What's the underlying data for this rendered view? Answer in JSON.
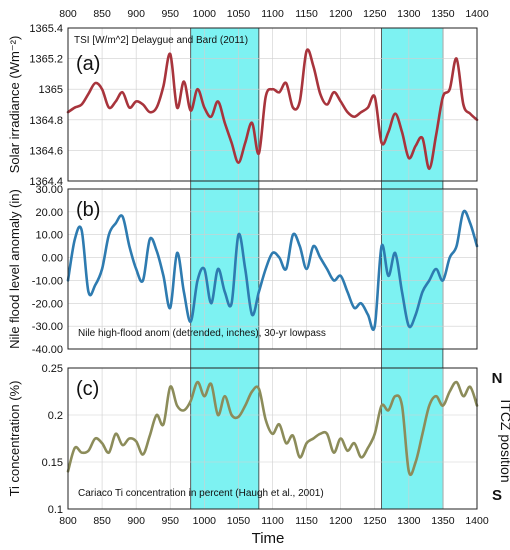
{
  "chart_data": {
    "type": "line",
    "x_axis": {
      "label": "Time",
      "range": [
        800,
        1400
      ],
      "ticks": [
        "800",
        "850",
        "900",
        "950",
        "1000",
        "1050",
        "1100",
        "1150",
        "1200",
        "1250",
        "1300",
        "1350",
        "1400"
      ]
    },
    "highlight_bands": [
      [
        980,
        1080
      ],
      [
        1260,
        1350
      ]
    ],
    "colors": {
      "band": "#66f0f0",
      "tsi": "#a8343c",
      "nile": "#2e7bb0",
      "ti": "#8c8c5a",
      "grid": "#cfcfcf"
    },
    "panels": [
      {
        "tag": "(a)",
        "ylabel": "Solar irradiance (Wm⁻²)",
        "ylim": [
          1364.4,
          1365.4
        ],
        "yticks": [
          "1365.4",
          "1365.2",
          "1365",
          "1364.8",
          "1364.6",
          "1364.4"
        ],
        "annotation": "TSI [W/m^2] Delaygue and Bard (2011)",
        "series": [
          {
            "x": [
              800,
              810,
              820,
              830,
              840,
              850,
              860,
              870,
              880,
              890,
              900,
              910,
              920,
              930,
              940,
              950,
              960,
              970,
              980,
              990,
              1000,
              1010,
              1020,
              1030,
              1040,
              1050,
              1060,
              1070,
              1080,
              1090,
              1100,
              1110,
              1120,
              1130,
              1140,
              1150,
              1160,
              1170,
              1180,
              1190,
              1200,
              1210,
              1220,
              1230,
              1240,
              1250,
              1260,
              1270,
              1280,
              1290,
              1300,
              1310,
              1320,
              1330,
              1340,
              1350,
              1360,
              1370,
              1380,
              1390,
              1400
            ],
            "y": [
              1364.85,
              1364.88,
              1364.9,
              1364.97,
              1365.04,
              1365.0,
              1364.88,
              1364.92,
              1364.98,
              1364.88,
              1364.92,
              1364.9,
              1364.85,
              1364.88,
              1365.02,
              1365.23,
              1364.88,
              1365.05,
              1364.86,
              1365.0,
              1364.88,
              1364.82,
              1364.92,
              1364.78,
              1364.65,
              1364.52,
              1364.65,
              1364.78,
              1364.58,
              1364.95,
              1365.0,
              1364.98,
              1365.04,
              1364.88,
              1364.92,
              1365.25,
              1365.15,
              1364.97,
              1364.9,
              1364.98,
              1364.92,
              1364.85,
              1364.82,
              1364.85,
              1364.88,
              1364.95,
              1364.65,
              1364.72,
              1364.84,
              1364.72,
              1364.55,
              1364.63,
              1364.68,
              1364.48,
              1364.7,
              1364.95,
              1365.0,
              1365.2,
              1364.9,
              1364.84,
              1364.8
            ]
          }
        ]
      },
      {
        "tag": "(b)",
        "ylabel": "Nile flood level anomaly (in)",
        "ylim": [
          -40,
          30
        ],
        "yticks": [
          "30.00",
          "20.00",
          "10.00",
          "0.00",
          "-10.00",
          "-20.00",
          "-30.00",
          "-40.00"
        ],
        "annotation": "Nile high-flood anom (detrended, inches), 30-yr lowpass",
        "series": [
          {
            "x": [
              800,
              810,
              820,
              830,
              840,
              850,
              860,
              870,
              880,
              890,
              900,
              910,
              920,
              930,
              940,
              950,
              960,
              970,
              980,
              990,
              1000,
              1010,
              1020,
              1030,
              1040,
              1050,
              1060,
              1070,
              1080,
              1090,
              1100,
              1110,
              1120,
              1130,
              1140,
              1150,
              1160,
              1170,
              1180,
              1190,
              1200,
              1210,
              1220,
              1230,
              1240,
              1250,
              1260,
              1270,
              1280,
              1290,
              1300,
              1310,
              1320,
              1330,
              1340,
              1350,
              1360,
              1370,
              1380,
              1390,
              1400
            ],
            "y": [
              -10,
              8,
              12,
              -15,
              -12,
              -5,
              10,
              15,
              18,
              5,
              -5,
              -10,
              8,
              3,
              -8,
              -22,
              2,
              -15,
              -28,
              -10,
              -5,
              -20,
              -5,
              -15,
              -20,
              10,
              -5,
              -25,
              -15,
              -5,
              2,
              0,
              -5,
              10,
              5,
              -5,
              5,
              0,
              -5,
              -10,
              -8,
              -15,
              -22,
              -20,
              -25,
              -30,
              5,
              -8,
              2,
              -15,
              -30,
              -25,
              -15,
              -10,
              -5,
              -10,
              0,
              5,
              20,
              15,
              5
            ]
          }
        ]
      },
      {
        "tag": "(c)",
        "ylabel": "Ti concentration (%)",
        "ylim": [
          0.1,
          0.25
        ],
        "yticks": [
          "0.25",
          "0.2",
          "0.15",
          "0.1"
        ],
        "annotation": "Cariaco Ti concentration in percent (Haugh et al., 2001)",
        "series": [
          {
            "x": [
              800,
              810,
              820,
              830,
              840,
              850,
              860,
              870,
              880,
              890,
              900,
              910,
              920,
              930,
              940,
              950,
              960,
              970,
              980,
              990,
              1000,
              1010,
              1020,
              1030,
              1040,
              1050,
              1060,
              1070,
              1080,
              1090,
              1100,
              1110,
              1120,
              1130,
              1140,
              1150,
              1160,
              1170,
              1180,
              1190,
              1200,
              1210,
              1220,
              1230,
              1240,
              1250,
              1260,
              1270,
              1280,
              1290,
              1300,
              1310,
              1320,
              1330,
              1340,
              1350,
              1360,
              1370,
              1380,
              1390,
              1400
            ],
            "y": [
              0.14,
              0.165,
              0.16,
              0.162,
              0.175,
              0.17,
              0.16,
              0.18,
              0.168,
              0.175,
              0.172,
              0.158,
              0.178,
              0.2,
              0.19,
              0.23,
              0.21,
              0.205,
              0.215,
              0.235,
              0.22,
              0.233,
              0.2,
              0.22,
              0.2,
              0.198,
              0.21,
              0.225,
              0.228,
              0.195,
              0.18,
              0.19,
              0.17,
              0.178,
              0.155,
              0.17,
              0.175,
              0.18,
              0.18,
              0.16,
              0.175,
              0.162,
              0.17,
              0.155,
              0.165,
              0.18,
              0.21,
              0.205,
              0.22,
              0.21,
              0.14,
              0.15,
              0.18,
              0.21,
              0.22,
              0.21,
              0.225,
              0.235,
              0.22,
              0.23,
              0.21
            ]
          }
        ]
      }
    ],
    "itcz": {
      "label": "ITCZ position",
      "north": "N",
      "south": "S"
    }
  }
}
